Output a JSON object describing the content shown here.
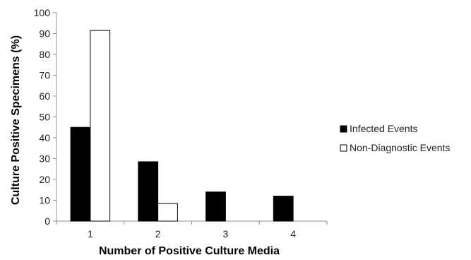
{
  "chart_data": {
    "type": "bar",
    "title": "",
    "xlabel": "Number of Positive Culture Media",
    "ylabel": "Culture Positive Specimens (%)",
    "categories": [
      "1",
      "2",
      "3",
      "4"
    ],
    "series": [
      {
        "name": "Infected Events",
        "values": [
          45,
          28.5,
          14,
          12
        ],
        "color": "#000000"
      },
      {
        "name": "Non-Diagnostic Events",
        "values": [
          91.5,
          8.5,
          0,
          0
        ],
        "color": "#ffffff"
      }
    ],
    "ylim": [
      0,
      100
    ],
    "yticks": [
      "0",
      "10",
      "20",
      "30",
      "40",
      "50",
      "60",
      "70",
      "80",
      "90",
      "100"
    ],
    "grid": false,
    "legend": "right",
    "colors": {
      "axis": "#8c8c8c",
      "bar_outline": "#000000",
      "text": "#222222"
    }
  }
}
